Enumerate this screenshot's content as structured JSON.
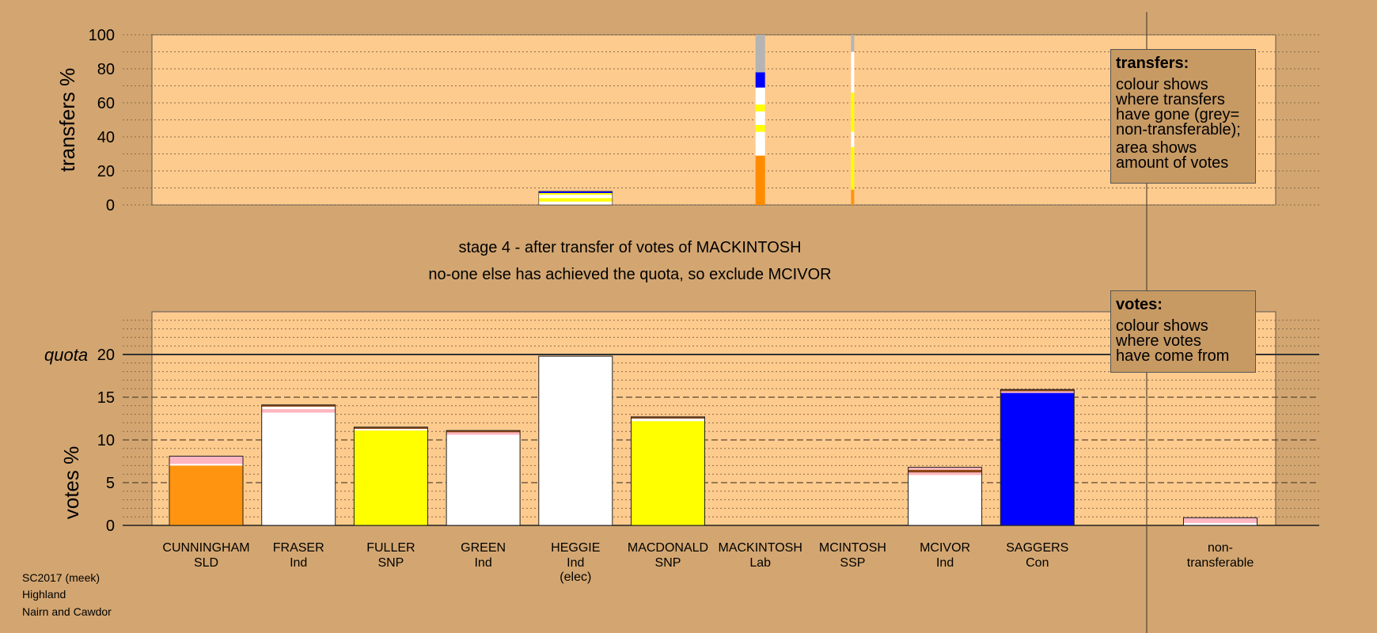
{
  "stage_text": "stage 4 - after transfer of votes of MACKINTOSH",
  "sub_text": "no-one else has achieved the quota, so exclude MCIVOR",
  "quota_label": "quota",
  "transfer_legend": {
    "title": "transfers:",
    "line1": "colour shows\nwhere transfers\nhave gone (grey=\nnon-transferable);",
    "line2": "area shows\namount of votes"
  },
  "votes_legend": {
    "title": "votes:",
    "line1": "colour shows\nwhere votes\nhave come from"
  },
  "footer": {
    "line1": "SC2017 (meek)",
    "line2": "Highland",
    "line3": "Nairn and Cawdor"
  },
  "colors": {
    "background": "#d3a671",
    "panel": "#fecb8e",
    "SLD": "#ff9410",
    "Ind": "#ffffff",
    "SNP": "#ffff00",
    "Lab": "#ff8c00",
    "Con": "#0000ff",
    "nontransferable": "#ffb6c1",
    "grey": "#b4b4b4"
  },
  "chart_data": [
    {
      "type": "bar",
      "name": "transfers",
      "ylabel": "transfers %",
      "ylim": [
        0,
        100
      ],
      "yticks": [
        0,
        20,
        40,
        60,
        80,
        100
      ],
      "grid": true,
      "columns": [
        {
          "candidate": "HEGGIE",
          "segments": [
            {
              "value": 2,
              "color": "#ffffff"
            },
            {
              "value": 2,
              "color": "#ffff00"
            },
            {
              "value": 2,
              "color": "#ffffff"
            },
            {
              "value": 1,
              "color": "#ffff00"
            },
            {
              "value": 1,
              "color": "#0000ff"
            }
          ]
        },
        {
          "candidate": "MACKINTOSH",
          "segments": [
            {
              "value": 29,
              "color": "#ff8c00"
            },
            {
              "value": 14,
              "color": "#ffffff"
            },
            {
              "value": 4,
              "color": "#ffff00"
            },
            {
              "value": 8,
              "color": "#ffffff"
            },
            {
              "value": 4,
              "color": "#ffff00"
            },
            {
              "value": 10,
              "color": "#ffffff"
            },
            {
              "value": 9,
              "color": "#0000ff"
            },
            {
              "value": 22,
              "color": "#b4b4b4"
            }
          ]
        },
        {
          "candidate": "MCINTOSH",
          "segments": [
            {
              "value": 9,
              "color": "#ff9410"
            },
            {
              "value": 25,
              "color": "#ffff00"
            },
            {
              "value": 9,
              "color": "#ffffff"
            },
            {
              "value": 23,
              "color": "#ffff00"
            },
            {
              "value": 24,
              "color": "#ffffff"
            },
            {
              "value": 10,
              "color": "#b4b4b4"
            }
          ]
        }
      ]
    },
    {
      "type": "bar",
      "name": "votes",
      "ylabel": "votes %",
      "ylim": [
        0,
        25
      ],
      "yticks": [
        0,
        5,
        10,
        15,
        20
      ],
      "quota": 20,
      "grid": true,
      "categories": [
        {
          "name": "CUNNINGHAM",
          "party": "SLD",
          "extra": ""
        },
        {
          "name": "FRASER",
          "party": "Ind",
          "extra": ""
        },
        {
          "name": "FULLER",
          "party": "SNP",
          "extra": ""
        },
        {
          "name": "GREEN",
          "party": "Ind",
          "extra": ""
        },
        {
          "name": "HEGGIE",
          "party": "Ind",
          "extra": "(elec)"
        },
        {
          "name": "MACDONALD",
          "party": "SNP",
          "extra": ""
        },
        {
          "name": "MACKINTOSH",
          "party": "Lab",
          "extra": ""
        },
        {
          "name": "MCINTOSH",
          "party": "SSP",
          "extra": ""
        },
        {
          "name": "MCIVOR",
          "party": "Ind",
          "extra": ""
        },
        {
          "name": "SAGGERS",
          "party": "Con",
          "extra": ""
        },
        {
          "name": "non-",
          "party": "transferable",
          "extra": ""
        }
      ],
      "bars": [
        [
          {
            "value": 7.0,
            "color": "#ff9410"
          },
          {
            "value": 0.2,
            "color": "#ffffff"
          },
          {
            "value": 0.9,
            "color": "#ffb6c1"
          }
        ],
        [
          {
            "value": 13.2,
            "color": "#ffffff"
          },
          {
            "value": 0.4,
            "color": "#ffb6c1"
          },
          {
            "value": 0.3,
            "color": "#ffffff"
          },
          {
            "value": 0.2,
            "color": "#8b4513"
          }
        ],
        [
          {
            "value": 11.1,
            "color": "#ffff00"
          },
          {
            "value": 0.2,
            "color": "#ffffff"
          },
          {
            "value": 0.2,
            "color": "#8b4513"
          }
        ],
        [
          {
            "value": 10.6,
            "color": "#ffffff"
          },
          {
            "value": 0.3,
            "color": "#ffb6c1"
          },
          {
            "value": 0.2,
            "color": "#8b4513"
          }
        ],
        [
          {
            "value": 19.8,
            "color": "#ffffff"
          }
        ],
        [
          {
            "value": 12.2,
            "color": "#ffff00"
          },
          {
            "value": 0.3,
            "color": "#ffffff"
          },
          {
            "value": 0.2,
            "color": "#8b4513"
          }
        ],
        [],
        [],
        [
          {
            "value": 5.9,
            "color": "#ffffff"
          },
          {
            "value": 0.3,
            "color": "#ffb6c1"
          },
          {
            "value": 0.3,
            "color": "#8b4513"
          },
          {
            "value": 0.3,
            "color": "#ffb6c1"
          }
        ],
        [
          {
            "value": 15.5,
            "color": "#0000ff"
          },
          {
            "value": 0.2,
            "color": "#ffb6c1"
          },
          {
            "value": 0.2,
            "color": "#8b4513"
          }
        ],
        [
          {
            "value": 0.3,
            "color": "#ffffff"
          },
          {
            "value": 0.6,
            "color": "#ffb6c1"
          }
        ]
      ]
    }
  ]
}
